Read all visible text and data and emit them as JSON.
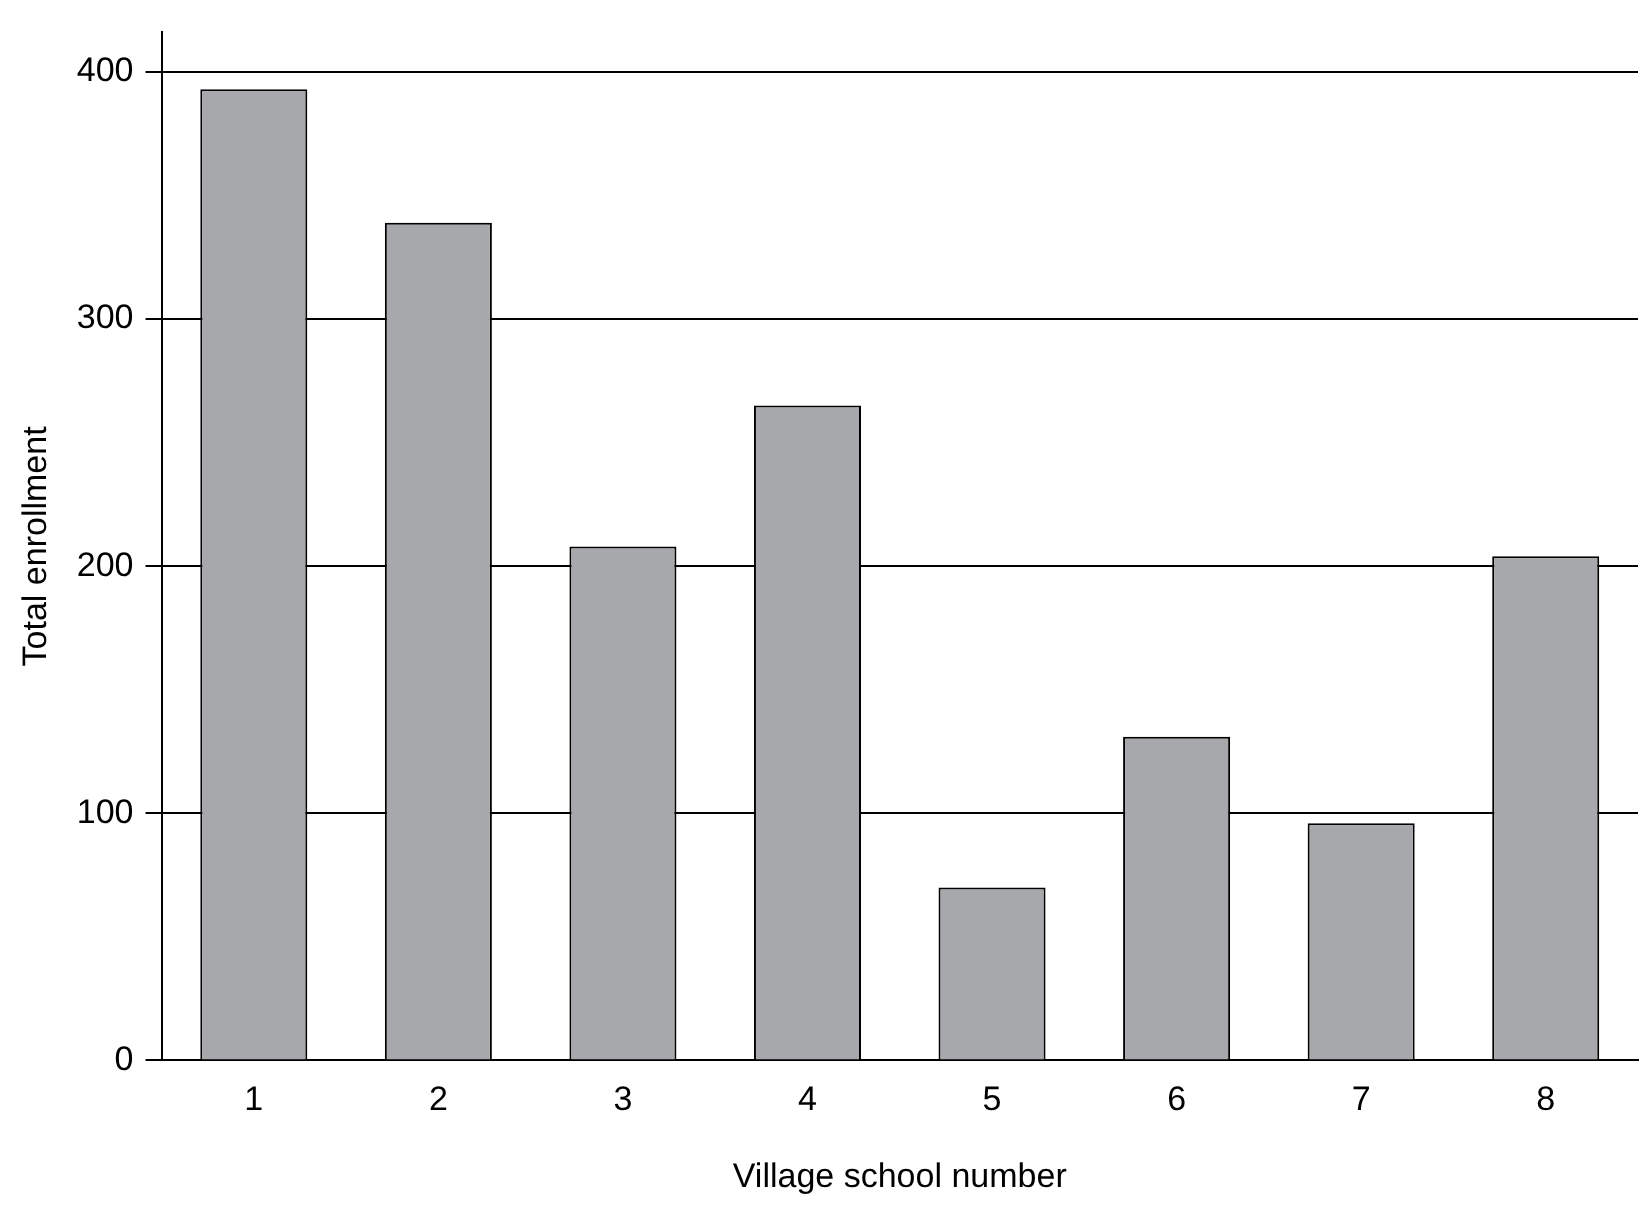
{
  "chart_data": {
    "type": "bar",
    "xlabel": "Village school number",
    "ylabel": "Total enrollment",
    "categories": [
      "1",
      "2",
      "3",
      "4",
      "5",
      "6",
      "7",
      "8"
    ],
    "values": [
      393,
      339,
      208,
      265,
      70,
      131,
      96,
      204
    ],
    "color": "#a7a8ac",
    "ylim": [
      0,
      416
    ],
    "yticks": [
      0,
      100,
      200,
      300,
      400
    ],
    "grid": "y",
    "legend": false
  }
}
